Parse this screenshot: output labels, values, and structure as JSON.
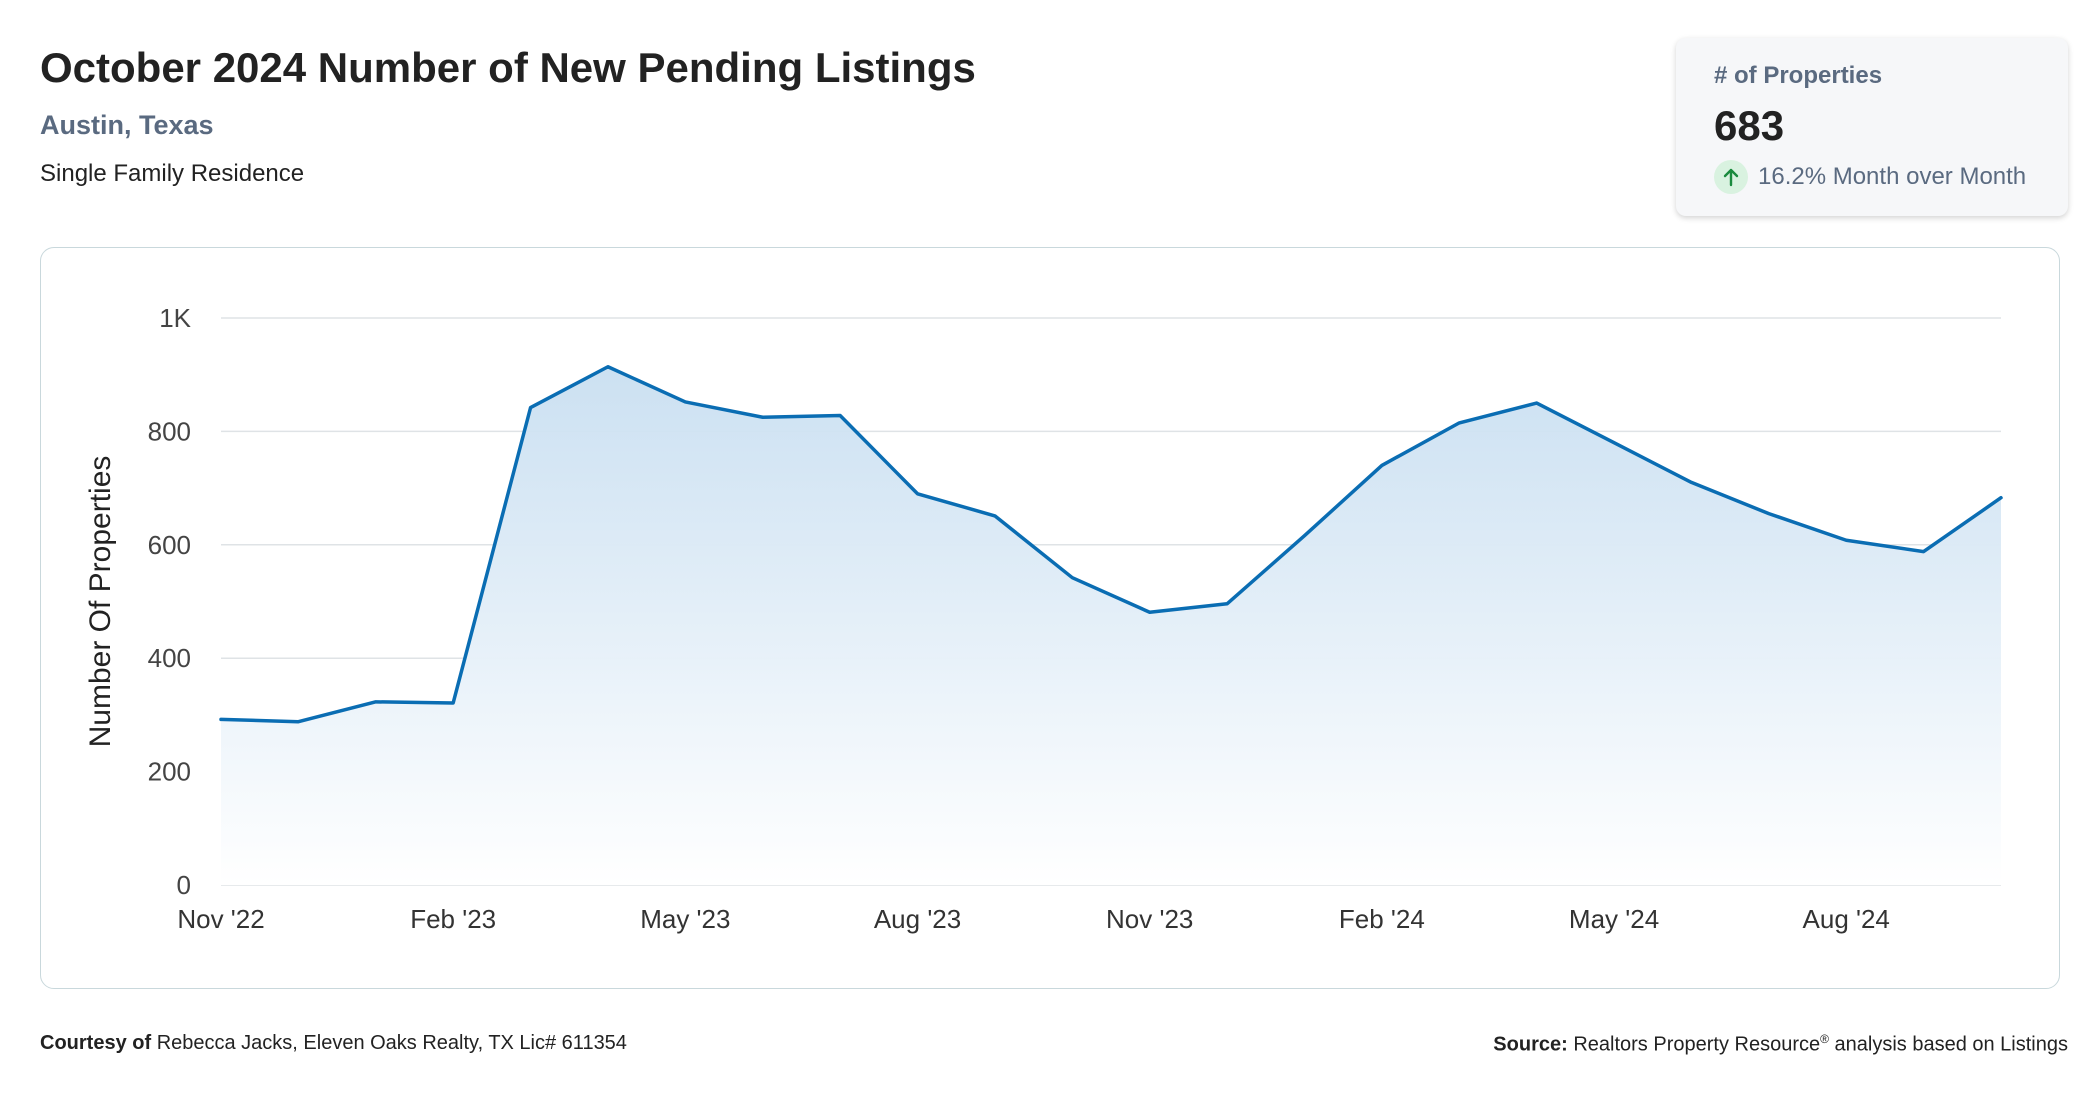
{
  "header": {
    "title": "October 2024 Number of New Pending Listings",
    "location": "Austin, Texas",
    "property_type": "Single Family Residence"
  },
  "kpi": {
    "label": "# of Properties",
    "value": "683",
    "change": "16.2% Month over Month",
    "trend_icon": "arrow-up-icon",
    "trend_color": "#1a8a3e"
  },
  "footer": {
    "courtesy_label": "Courtesy of",
    "courtesy_text": "Rebecca Jacks, Eleven Oaks Realty, TX Lic# 611354",
    "source_label": "Source:",
    "source_name": "Realtors Property Resource",
    "source_mark": "®",
    "source_text": "analysis based on Listings"
  },
  "colors": {
    "line": "#0a6db3",
    "area_top": "#c9dff1",
    "area_bottom": "#ffffff",
    "grid": "#dfe3e6"
  },
  "chart_data": {
    "type": "area",
    "title": "",
    "xlabel": "",
    "ylabel": "Number Of Properties",
    "ylim": [
      0,
      1000
    ],
    "yticks": [
      0,
      200,
      400,
      600,
      800,
      1000
    ],
    "ytick_labels": [
      "0",
      "200",
      "400",
      "600",
      "800",
      "1K"
    ],
    "x": [
      "Nov '22",
      "Dec '22",
      "Jan '23",
      "Feb '23",
      "Mar '23",
      "Apr '23",
      "May '23",
      "Jun '23",
      "Jul '23",
      "Aug '23",
      "Sep '23",
      "Oct '23",
      "Nov '23",
      "Dec '23",
      "Jan '24",
      "Feb '24",
      "Mar '24",
      "Apr '24",
      "May '24",
      "Jun '24",
      "Jul '24",
      "Aug '24",
      "Sep '24",
      "Oct '24"
    ],
    "xtick_labels": [
      "Nov '22",
      "Feb '23",
      "May '23",
      "Aug '23",
      "Nov '23",
      "Feb '24",
      "May '24",
      "Aug '24"
    ],
    "xtick_indices": [
      0,
      3,
      6,
      9,
      12,
      15,
      18,
      21
    ],
    "series": [
      {
        "values": [
          292,
          288,
          323,
          321,
          842,
          914,
          852,
          825,
          828,
          690,
          651,
          542,
          481,
          496,
          616,
          740,
          815,
          850,
          780,
          710,
          655,
          608,
          588,
          683
        ]
      }
    ],
    "grid": true,
    "legend": "none"
  }
}
